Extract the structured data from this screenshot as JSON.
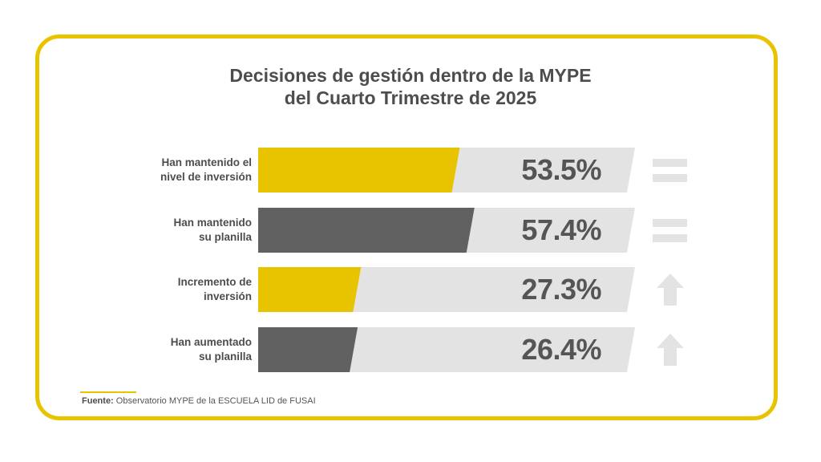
{
  "chart_data": {
    "type": "bar",
    "title_lines": [
      "Decisiones de gestión dentro de la MYPE",
      "del Cuarto Trimestre de 2025"
    ],
    "categories": [
      "Han mantenido el nivel de inversión",
      "Han mantenido su planilla",
      "Incremento de inversión",
      "Han aumentado su planilla"
    ],
    "category_lines": [
      [
        "Han mantenido el",
        "nivel de inversión"
      ],
      [
        "Han mantenido",
        "su planilla"
      ],
      [
        "Incremento de",
        "inversión"
      ],
      [
        "Han aumentado",
        "su planilla"
      ]
    ],
    "values": [
      53.5,
      57.4,
      27.3,
      26.4
    ],
    "value_labels": [
      "53.5%",
      "57.4%",
      "27.3%",
      "26.4%"
    ],
    "bar_colors": [
      "#e8c300",
      "#616161",
      "#e8c300",
      "#616161"
    ],
    "track_color": "#e3e3e3",
    "icons": [
      "equals-icon",
      "equals-icon",
      "arrow-up-icon",
      "arrow-up-icon"
    ],
    "xlim": [
      0,
      100
    ]
  },
  "footer": {
    "source_label": "Fuente:",
    "source_text": "Observatorio MYPE de la ESCUELA LID de FUSAI"
  },
  "colors": {
    "accent": "#e8c300",
    "dark": "#616161",
    "text": "#4d4d4d",
    "icon": "#e3e3e3"
  }
}
